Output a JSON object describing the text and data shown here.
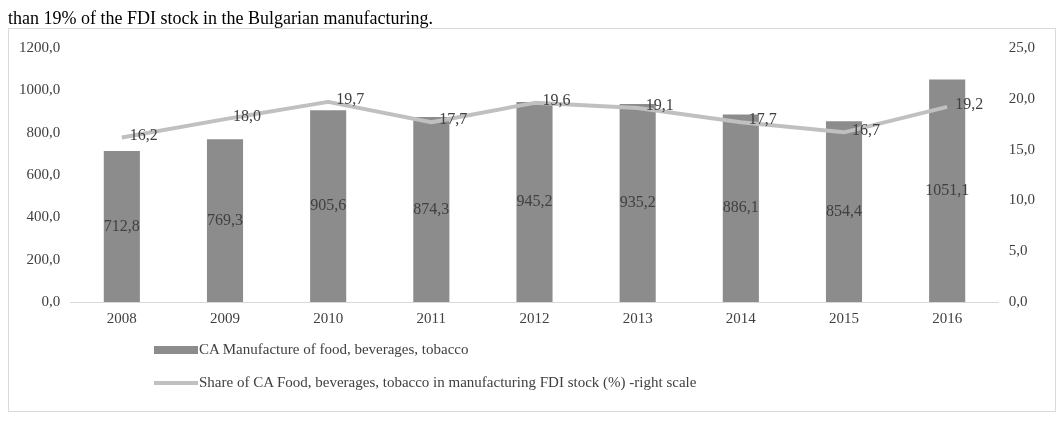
{
  "chart_data": {
    "type": "bar",
    "annotations": [
      "than 19% of the FDI stock in the Bulgarian manufacturing."
    ],
    "categories": [
      "2008",
      "2009",
      "2010",
      "2011",
      "2012",
      "2013",
      "2014",
      "2015",
      "2016"
    ],
    "series": [
      {
        "name": "CA Manufacture of food, beverages, tobacco",
        "color": "#8c8c8c",
        "values": [
          712.8,
          769.3,
          905.6,
          874.3,
          945.2,
          935.2,
          886.1,
          854.4,
          1051.1
        ],
        "value_labels": [
          "712,8",
          "769,3",
          "905,6",
          "874,3",
          "945,2",
          "935,2",
          "886,1",
          "854,4",
          "1051,1"
        ]
      },
      {
        "name": "Share of CA Food, beverages, tobacco in manufacturing FDI stock (%) -right scale",
        "type": "line",
        "axis": "y2",
        "color": "#c0c0c0",
        "marker": "none",
        "values": [
          16.2,
          18.0,
          19.7,
          17.7,
          19.6,
          19.1,
          17.7,
          16.7,
          19.2
        ],
        "value_labels": [
          "16,2",
          "18,0",
          "19,7",
          "17,7",
          "19,6",
          "19,1",
          "17,7",
          "16,7",
          "19,2"
        ]
      }
    ],
    "ylim": [
      0,
      1200
    ],
    "yticks": [
      {
        "value": 0,
        "label": "0,0"
      },
      {
        "value": 200,
        "label": "200,0"
      },
      {
        "value": 400,
        "label": "400,0"
      },
      {
        "value": 600,
        "label": "600,0"
      },
      {
        "value": 800,
        "label": "800,0"
      },
      {
        "value": 1000,
        "label": "1000,0"
      },
      {
        "value": 1200,
        "label": "1200,0"
      }
    ],
    "y2lim": [
      0,
      25
    ],
    "y2ticks": [
      {
        "value": 0,
        "label": "0,0"
      },
      {
        "value": 5,
        "label": "5,0"
      },
      {
        "value": 10,
        "label": "10,0"
      },
      {
        "value": 15,
        "label": "15,0"
      },
      {
        "value": 20,
        "label": "20,0"
      },
      {
        "value": 25,
        "label": "25,0"
      }
    ],
    "grid": false,
    "legend": "bottom"
  }
}
